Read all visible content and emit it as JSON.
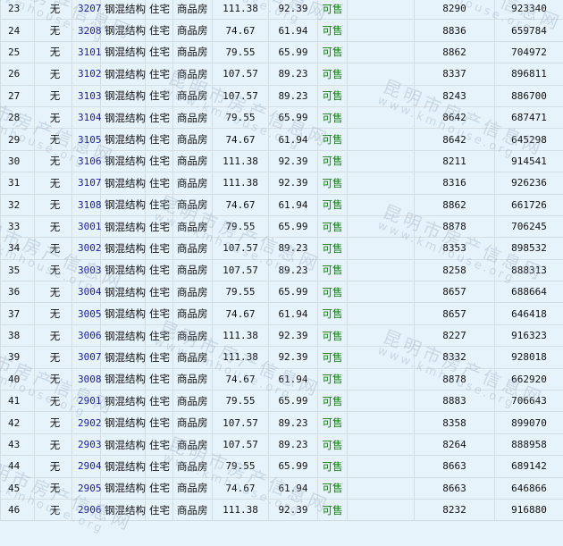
{
  "watermark": {
    "title": "昆明市房产信息网",
    "url": "www.kmhouse.org"
  },
  "colors": {
    "room_number": "#1a1aa8",
    "status": "#127a12",
    "background": "#e6f3fb"
  },
  "rows": [
    {
      "no": "23",
      "mortgage": "无",
      "room": "3207",
      "structure": "钢混结构",
      "use": "住宅",
      "type": "商品房",
      "build_area": "111.38",
      "inner_area": "92.39",
      "status": "可售",
      "note": "",
      "price": "8290",
      "total": "923340"
    },
    {
      "no": "24",
      "mortgage": "无",
      "room": "3208",
      "structure": "钢混结构",
      "use": "住宅",
      "type": "商品房",
      "build_area": "74.67",
      "inner_area": "61.94",
      "status": "可售",
      "note": "",
      "price": "8836",
      "total": "659784"
    },
    {
      "no": "25",
      "mortgage": "无",
      "room": "3101",
      "structure": "钢混结构",
      "use": "住宅",
      "type": "商品房",
      "build_area": "79.55",
      "inner_area": "65.99",
      "status": "可售",
      "note": "",
      "price": "8862",
      "total": "704972"
    },
    {
      "no": "26",
      "mortgage": "无",
      "room": "3102",
      "structure": "钢混结构",
      "use": "住宅",
      "type": "商品房",
      "build_area": "107.57",
      "inner_area": "89.23",
      "status": "可售",
      "note": "",
      "price": "8337",
      "total": "896811"
    },
    {
      "no": "27",
      "mortgage": "无",
      "room": "3103",
      "structure": "钢混结构",
      "use": "住宅",
      "type": "商品房",
      "build_area": "107.57",
      "inner_area": "89.23",
      "status": "可售",
      "note": "",
      "price": "8243",
      "total": "886700"
    },
    {
      "no": "28",
      "mortgage": "无",
      "room": "3104",
      "structure": "钢混结构",
      "use": "住宅",
      "type": "商品房",
      "build_area": "79.55",
      "inner_area": "65.99",
      "status": "可售",
      "note": "",
      "price": "8642",
      "total": "687471"
    },
    {
      "no": "29",
      "mortgage": "无",
      "room": "3105",
      "structure": "钢混结构",
      "use": "住宅",
      "type": "商品房",
      "build_area": "74.67",
      "inner_area": "61.94",
      "status": "可售",
      "note": "",
      "price": "8642",
      "total": "645298"
    },
    {
      "no": "30",
      "mortgage": "无",
      "room": "3106",
      "structure": "钢混结构",
      "use": "住宅",
      "type": "商品房",
      "build_area": "111.38",
      "inner_area": "92.39",
      "status": "可售",
      "note": "",
      "price": "8211",
      "total": "914541"
    },
    {
      "no": "31",
      "mortgage": "无",
      "room": "3107",
      "structure": "钢混结构",
      "use": "住宅",
      "type": "商品房",
      "build_area": "111.38",
      "inner_area": "92.39",
      "status": "可售",
      "note": "",
      "price": "8316",
      "total": "926236"
    },
    {
      "no": "32",
      "mortgage": "无",
      "room": "3108",
      "structure": "钢混结构",
      "use": "住宅",
      "type": "商品房",
      "build_area": "74.67",
      "inner_area": "61.94",
      "status": "可售",
      "note": "",
      "price": "8862",
      "total": "661726"
    },
    {
      "no": "33",
      "mortgage": "无",
      "room": "3001",
      "structure": "钢混结构",
      "use": "住宅",
      "type": "商品房",
      "build_area": "79.55",
      "inner_area": "65.99",
      "status": "可售",
      "note": "",
      "price": "8878",
      "total": "706245"
    },
    {
      "no": "34",
      "mortgage": "无",
      "room": "3002",
      "structure": "钢混结构",
      "use": "住宅",
      "type": "商品房",
      "build_area": "107.57",
      "inner_area": "89.23",
      "status": "可售",
      "note": "",
      "price": "8353",
      "total": "898532"
    },
    {
      "no": "35",
      "mortgage": "无",
      "room": "3003",
      "structure": "钢混结构",
      "use": "住宅",
      "type": "商品房",
      "build_area": "107.57",
      "inner_area": "89.23",
      "status": "可售",
      "note": "",
      "price": "8258",
      "total": "888313"
    },
    {
      "no": "36",
      "mortgage": "无",
      "room": "3004",
      "structure": "钢混结构",
      "use": "住宅",
      "type": "商品房",
      "build_area": "79.55",
      "inner_area": "65.99",
      "status": "可售",
      "note": "",
      "price": "8657",
      "total": "688664"
    },
    {
      "no": "37",
      "mortgage": "无",
      "room": "3005",
      "structure": "钢混结构",
      "use": "住宅",
      "type": "商品房",
      "build_area": "74.67",
      "inner_area": "61.94",
      "status": "可售",
      "note": "",
      "price": "8657",
      "total": "646418"
    },
    {
      "no": "38",
      "mortgage": "无",
      "room": "3006",
      "structure": "钢混结构",
      "use": "住宅",
      "type": "商品房",
      "build_area": "111.38",
      "inner_area": "92.39",
      "status": "可售",
      "note": "",
      "price": "8227",
      "total": "916323"
    },
    {
      "no": "39",
      "mortgage": "无",
      "room": "3007",
      "structure": "钢混结构",
      "use": "住宅",
      "type": "商品房",
      "build_area": "111.38",
      "inner_area": "92.39",
      "status": "可售",
      "note": "",
      "price": "8332",
      "total": "928018"
    },
    {
      "no": "40",
      "mortgage": "无",
      "room": "3008",
      "structure": "钢混结构",
      "use": "住宅",
      "type": "商品房",
      "build_area": "74.67",
      "inner_area": "61.94",
      "status": "可售",
      "note": "",
      "price": "8878",
      "total": "662920"
    },
    {
      "no": "41",
      "mortgage": "无",
      "room": "2901",
      "structure": "钢混结构",
      "use": "住宅",
      "type": "商品房",
      "build_area": "79.55",
      "inner_area": "65.99",
      "status": "可售",
      "note": "",
      "price": "8883",
      "total": "706643"
    },
    {
      "no": "42",
      "mortgage": "无",
      "room": "2902",
      "structure": "钢混结构",
      "use": "住宅",
      "type": "商品房",
      "build_area": "107.57",
      "inner_area": "89.23",
      "status": "可售",
      "note": "",
      "price": "8358",
      "total": "899070"
    },
    {
      "no": "43",
      "mortgage": "无",
      "room": "2903",
      "structure": "钢混结构",
      "use": "住宅",
      "type": "商品房",
      "build_area": "107.57",
      "inner_area": "89.23",
      "status": "可售",
      "note": "",
      "price": "8264",
      "total": "888958"
    },
    {
      "no": "44",
      "mortgage": "无",
      "room": "2904",
      "structure": "钢混结构",
      "use": "住宅",
      "type": "商品房",
      "build_area": "79.55",
      "inner_area": "65.99",
      "status": "可售",
      "note": "",
      "price": "8663",
      "total": "689142"
    },
    {
      "no": "45",
      "mortgage": "无",
      "room": "2905",
      "structure": "钢混结构",
      "use": "住宅",
      "type": "商品房",
      "build_area": "74.67",
      "inner_area": "61.94",
      "status": "可售",
      "note": "",
      "price": "8663",
      "total": "646866"
    },
    {
      "no": "46",
      "mortgage": "无",
      "room": "2906",
      "structure": "钢混结构",
      "use": "住宅",
      "type": "商品房",
      "build_area": "111.38",
      "inner_area": "92.39",
      "status": "可售",
      "note": "",
      "price": "8232",
      "total": "916880"
    }
  ]
}
